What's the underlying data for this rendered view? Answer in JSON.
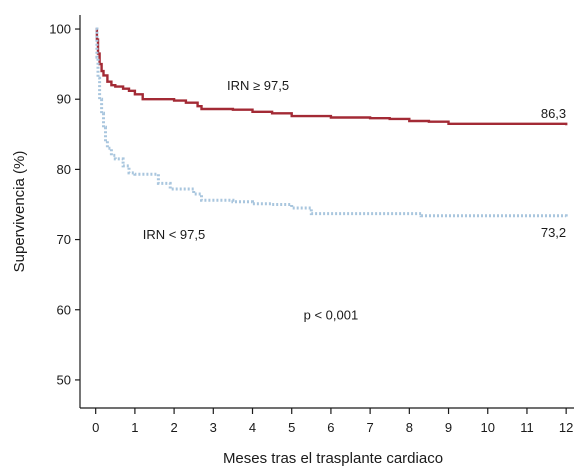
{
  "chart_data": {
    "type": "line",
    "title": "",
    "xlabel": "Meses tras el trasplante cardiaco",
    "ylabel": "Supervivencia (%)",
    "xlim": [
      -0.4,
      12.2
    ],
    "ylim": [
      46,
      102
    ],
    "x_ticks": [
      "0",
      "1",
      "2",
      "3",
      "4",
      "5",
      "6",
      "7",
      "8",
      "9",
      "10",
      "11",
      "12"
    ],
    "y_ticks": [
      "50",
      "60",
      "70",
      "80",
      "90",
      "100"
    ],
    "x_tick_values": [
      0,
      1,
      2,
      3,
      4,
      5,
      6,
      7,
      8,
      9,
      10,
      11,
      12
    ],
    "y_tick_values": [
      50,
      60,
      70,
      80,
      90,
      100
    ],
    "series": [
      {
        "name": "IRN ≥ 97,5",
        "color": "#a32a35",
        "style": "solid",
        "points": [
          [
            0,
            100
          ],
          [
            0.03,
            98.5
          ],
          [
            0.06,
            96.5
          ],
          [
            0.1,
            95
          ],
          [
            0.15,
            94
          ],
          [
            0.2,
            93.4
          ],
          [
            0.3,
            92.5
          ],
          [
            0.4,
            92
          ],
          [
            0.5,
            91.8
          ],
          [
            0.7,
            91.5
          ],
          [
            0.85,
            91.2
          ],
          [
            1.0,
            90.7
          ],
          [
            1.2,
            90
          ],
          [
            1.5,
            90
          ],
          [
            2.0,
            89.8
          ],
          [
            2.3,
            89.5
          ],
          [
            2.6,
            89
          ],
          [
            2.7,
            88.6
          ],
          [
            3.5,
            88.5
          ],
          [
            4.0,
            88.2
          ],
          [
            4.5,
            88
          ],
          [
            5.0,
            87.6
          ],
          [
            6.0,
            87.4
          ],
          [
            7.0,
            87.3
          ],
          [
            7.5,
            87.2
          ],
          [
            8.0,
            86.9
          ],
          [
            8.5,
            86.8
          ],
          [
            9.0,
            86.5
          ],
          [
            12.0,
            86.3
          ]
        ],
        "end_label": "86,3",
        "label": "IRN ≥ 97,5"
      },
      {
        "name": "IRN < 97,5",
        "color": "#a9c6de",
        "style": "dotted",
        "points": [
          [
            0,
            100
          ],
          [
            0.03,
            96
          ],
          [
            0.06,
            93
          ],
          [
            0.1,
            90
          ],
          [
            0.15,
            88
          ],
          [
            0.2,
            86
          ],
          [
            0.25,
            84
          ],
          [
            0.3,
            83
          ],
          [
            0.4,
            82
          ],
          [
            0.5,
            81.5
          ],
          [
            0.7,
            80.5
          ],
          [
            0.85,
            79.5
          ],
          [
            1.0,
            79.3
          ],
          [
            1.5,
            79.3
          ],
          [
            1.6,
            78
          ],
          [
            1.9,
            77.2
          ],
          [
            2.5,
            76.5
          ],
          [
            2.7,
            75.6
          ],
          [
            3.5,
            75.4
          ],
          [
            4.0,
            75.1
          ],
          [
            4.5,
            75
          ],
          [
            5.0,
            74.5
          ],
          [
            5.5,
            73.7
          ],
          [
            8.3,
            73.4
          ],
          [
            12.0,
            73.2
          ]
        ],
        "end_label": "73,2",
        "label": "IRN < 97,5"
      }
    ],
    "annotation": "p < 0,001",
    "grid": false,
    "legend": "none"
  }
}
